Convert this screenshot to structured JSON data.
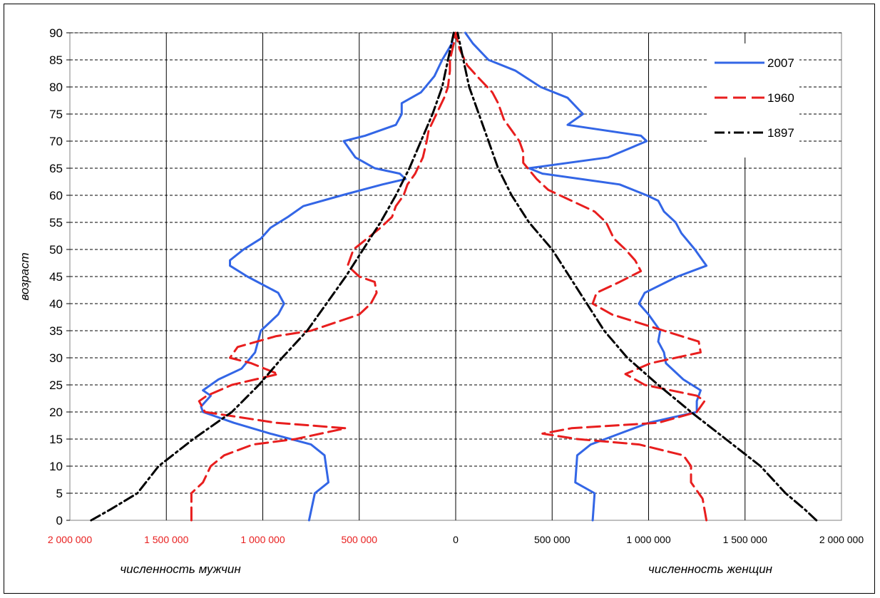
{
  "chart_data": {
    "type": "line",
    "title": "",
    "ylabel": "возраст",
    "xlabel_left": "численность мужчин",
    "xlabel_right": "численность женщин",
    "xlim": [
      -2000000,
      2000000
    ],
    "ylim": [
      0,
      90
    ],
    "x_tick_labels": [
      "2 000 000",
      "1 500 000",
      "1 000 000",
      "500 000",
      "0",
      "500 000",
      "1 000 000",
      "1 500 000",
      "2 000 000"
    ],
    "x_tick_values": [
      -2000000,
      -1500000,
      -1000000,
      -500000,
      0,
      500000,
      1000000,
      1500000,
      2000000
    ],
    "y_ticks": [
      0,
      5,
      10,
      15,
      20,
      25,
      30,
      35,
      40,
      45,
      50,
      55,
      60,
      65,
      70,
      75,
      80,
      85,
      90
    ],
    "grid": true,
    "legend_position": "top-right",
    "series": [
      {
        "name": "2007",
        "color": "#3366e6",
        "style": "solid",
        "male": [
          [
            0,
            -760000
          ],
          [
            5,
            -730000
          ],
          [
            7,
            -660000
          ],
          [
            12,
            -680000
          ],
          [
            14,
            -750000
          ],
          [
            16,
            -960000
          ],
          [
            18,
            -1150000
          ],
          [
            20,
            -1310000
          ],
          [
            21,
            -1320000
          ],
          [
            23,
            -1270000
          ],
          [
            24,
            -1310000
          ],
          [
            26,
            -1230000
          ],
          [
            28,
            -1110000
          ],
          [
            31,
            -1040000
          ],
          [
            35,
            -1010000
          ],
          [
            38,
            -920000
          ],
          [
            40,
            -890000
          ],
          [
            42,
            -920000
          ],
          [
            45,
            -1080000
          ],
          [
            47,
            -1170000
          ],
          [
            48,
            -1170000
          ],
          [
            50,
            -1100000
          ],
          [
            52,
            -1010000
          ],
          [
            54,
            -960000
          ],
          [
            56,
            -870000
          ],
          [
            58,
            -790000
          ],
          [
            60,
            -590000
          ],
          [
            62,
            -380000
          ],
          [
            63,
            -260000
          ],
          [
            64,
            -290000
          ],
          [
            65,
            -420000
          ],
          [
            67,
            -520000
          ],
          [
            70,
            -580000
          ],
          [
            71,
            -470000
          ],
          [
            73,
            -310000
          ],
          [
            75,
            -280000
          ],
          [
            77,
            -280000
          ],
          [
            79,
            -180000
          ],
          [
            82,
            -110000
          ],
          [
            85,
            -70000
          ],
          [
            88,
            -20000
          ],
          [
            90,
            -10000
          ]
        ],
        "female": [
          [
            0,
            710000
          ],
          [
            5,
            720000
          ],
          [
            7,
            620000
          ],
          [
            12,
            630000
          ],
          [
            14,
            700000
          ],
          [
            16,
            850000
          ],
          [
            18,
            1000000
          ],
          [
            20,
            1250000
          ],
          [
            22,
            1250000
          ],
          [
            24,
            1270000
          ],
          [
            26,
            1180000
          ],
          [
            29,
            1090000
          ],
          [
            31,
            1080000
          ],
          [
            33,
            1050000
          ],
          [
            35,
            1060000
          ],
          [
            38,
            1000000
          ],
          [
            40,
            950000
          ],
          [
            42,
            980000
          ],
          [
            45,
            1150000
          ],
          [
            47,
            1300000
          ],
          [
            48,
            1280000
          ],
          [
            50,
            1240000
          ],
          [
            53,
            1170000
          ],
          [
            55,
            1140000
          ],
          [
            57,
            1080000
          ],
          [
            59,
            1050000
          ],
          [
            60,
            990000
          ],
          [
            62,
            850000
          ],
          [
            64,
            450000
          ],
          [
            65,
            380000
          ],
          [
            67,
            790000
          ],
          [
            70,
            990000
          ],
          [
            71,
            960000
          ],
          [
            73,
            580000
          ],
          [
            75,
            660000
          ],
          [
            78,
            580000
          ],
          [
            80,
            440000
          ],
          [
            83,
            310000
          ],
          [
            85,
            170000
          ],
          [
            88,
            90000
          ],
          [
            90,
            50000
          ]
        ]
      },
      {
        "name": "1960",
        "color": "#e81e1e",
        "style": "dashed",
        "male": [
          [
            0,
            -1370000
          ],
          [
            5,
            -1370000
          ],
          [
            7,
            -1310000
          ],
          [
            10,
            -1270000
          ],
          [
            12,
            -1200000
          ],
          [
            14,
            -1050000
          ],
          [
            15,
            -830000
          ],
          [
            17,
            -570000
          ],
          [
            18,
            -930000
          ],
          [
            20,
            -1300000
          ],
          [
            22,
            -1330000
          ],
          [
            23,
            -1290000
          ],
          [
            25,
            -1160000
          ],
          [
            27,
            -920000
          ],
          [
            29,
            -1060000
          ],
          [
            30,
            -1170000
          ],
          [
            32,
            -1130000
          ],
          [
            34,
            -930000
          ],
          [
            35,
            -750000
          ],
          [
            38,
            -500000
          ],
          [
            40,
            -440000
          ],
          [
            42,
            -410000
          ],
          [
            44,
            -420000
          ],
          [
            45,
            -500000
          ],
          [
            47,
            -560000
          ],
          [
            50,
            -530000
          ],
          [
            52,
            -460000
          ],
          [
            54,
            -390000
          ],
          [
            56,
            -330000
          ],
          [
            58,
            -310000
          ],
          [
            60,
            -270000
          ],
          [
            62,
            -250000
          ],
          [
            64,
            -210000
          ],
          [
            67,
            -170000
          ],
          [
            70,
            -150000
          ],
          [
            72,
            -140000
          ],
          [
            75,
            -100000
          ],
          [
            78,
            -60000
          ],
          [
            80,
            -40000
          ],
          [
            83,
            -30000
          ],
          [
            85,
            -30000
          ],
          [
            88,
            -10000
          ],
          [
            90,
            0
          ]
        ],
        "female": [
          [
            0,
            1300000
          ],
          [
            4,
            1280000
          ],
          [
            7,
            1220000
          ],
          [
            10,
            1220000
          ],
          [
            12,
            1180000
          ],
          [
            14,
            950000
          ],
          [
            15,
            630000
          ],
          [
            16,
            450000
          ],
          [
            17,
            600000
          ],
          [
            18,
            1050000
          ],
          [
            20,
            1250000
          ],
          [
            22,
            1290000
          ],
          [
            23,
            1250000
          ],
          [
            25,
            980000
          ],
          [
            27,
            880000
          ],
          [
            29,
            1010000
          ],
          [
            31,
            1270000
          ],
          [
            33,
            1260000
          ],
          [
            35,
            1080000
          ],
          [
            38,
            810000
          ],
          [
            40,
            710000
          ],
          [
            42,
            730000
          ],
          [
            44,
            850000
          ],
          [
            46,
            960000
          ],
          [
            48,
            930000
          ],
          [
            50,
            880000
          ],
          [
            52,
            820000
          ],
          [
            55,
            780000
          ],
          [
            57,
            720000
          ],
          [
            59,
            600000
          ],
          [
            61,
            480000
          ],
          [
            63,
            420000
          ],
          [
            66,
            350000
          ],
          [
            68,
            350000
          ],
          [
            70,
            330000
          ],
          [
            72,
            290000
          ],
          [
            74,
            250000
          ],
          [
            77,
            220000
          ],
          [
            79,
            190000
          ],
          [
            82,
            110000
          ],
          [
            84,
            60000
          ],
          [
            87,
            20000
          ],
          [
            90,
            0
          ]
        ]
      },
      {
        "name": "1897",
        "color": "#000000",
        "style": "dash-dot",
        "male": [
          [
            0,
            -1890000
          ],
          [
            2,
            -1790000
          ],
          [
            5,
            -1650000
          ],
          [
            10,
            -1540000
          ],
          [
            15,
            -1360000
          ],
          [
            20,
            -1160000
          ],
          [
            25,
            -1020000
          ],
          [
            30,
            -900000
          ],
          [
            35,
            -770000
          ],
          [
            40,
            -670000
          ],
          [
            45,
            -570000
          ],
          [
            50,
            -480000
          ],
          [
            55,
            -390000
          ],
          [
            60,
            -310000
          ],
          [
            65,
            -240000
          ],
          [
            70,
            -180000
          ],
          [
            75,
            -120000
          ],
          [
            80,
            -70000
          ],
          [
            85,
            -40000
          ],
          [
            90,
            -10000
          ]
        ],
        "female": [
          [
            0,
            1870000
          ],
          [
            2,
            1810000
          ],
          [
            5,
            1710000
          ],
          [
            10,
            1580000
          ],
          [
            15,
            1400000
          ],
          [
            20,
            1220000
          ],
          [
            25,
            1050000
          ],
          [
            30,
            890000
          ],
          [
            35,
            770000
          ],
          [
            40,
            680000
          ],
          [
            45,
            590000
          ],
          [
            50,
            500000
          ],
          [
            55,
            380000
          ],
          [
            60,
            290000
          ],
          [
            65,
            220000
          ],
          [
            70,
            170000
          ],
          [
            75,
            120000
          ],
          [
            80,
            70000
          ],
          [
            85,
            40000
          ],
          [
            90,
            10000
          ]
        ]
      }
    ]
  }
}
